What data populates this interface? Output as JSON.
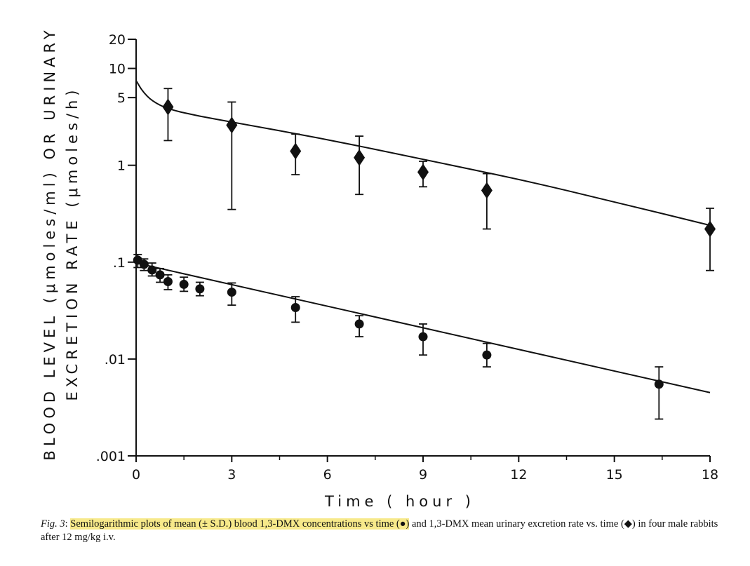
{
  "chart_data": {
    "type": "scatter",
    "x_axis": {
      "label": "Time ( hour )",
      "ticks": [
        0,
        3,
        6,
        9,
        12,
        15,
        18
      ],
      "tick_labels": [
        "0",
        "3",
        "6",
        "9",
        "12",
        "15",
        "18"
      ],
      "range": [
        0,
        18
      ]
    },
    "y_axis": {
      "label_line1": "BLOOD LEVEL (μmoles/ml) OR URINARY",
      "label_line2": "EXCRETION RATE (μmoles/h)",
      "scale": "log",
      "range": [
        0.001,
        20
      ],
      "ticks": [
        0.001,
        0.01,
        0.1,
        1,
        5,
        10,
        20
      ],
      "tick_labels": [
        ".001",
        ".01",
        ".1",
        "1",
        "5",
        "10",
        "20"
      ]
    },
    "series": [
      {
        "marker": "diamond",
        "points": [
          {
            "x": 1,
            "y": 4.0,
            "err_low": 1.8,
            "err_high": 6.2
          },
          {
            "x": 3,
            "y": 2.6,
            "err_low": 0.35,
            "err_high": 4.5
          },
          {
            "x": 5,
            "y": 1.4,
            "err_low": 0.8,
            "err_high": 2.1
          },
          {
            "x": 7,
            "y": 1.2,
            "err_low": 0.5,
            "err_high": 2.0
          },
          {
            "x": 9,
            "y": 0.85,
            "err_low": 0.6,
            "err_high": 1.1
          },
          {
            "x": 11,
            "y": 0.55,
            "err_low": 0.22,
            "err_high": 0.82
          },
          {
            "x": 18,
            "y": 0.22,
            "err_low": 0.082,
            "err_high": 0.36
          }
        ],
        "fit_line": [
          [
            0,
            7.5
          ],
          [
            0.2,
            5.8
          ],
          [
            0.5,
            4.6
          ],
          [
            1,
            3.8
          ],
          [
            2,
            3.2
          ],
          [
            3,
            2.8
          ],
          [
            6,
            1.85
          ],
          [
            9,
            1.15
          ],
          [
            12,
            0.72
          ],
          [
            15,
            0.42
          ],
          [
            18,
            0.24
          ]
        ],
        "color": "#111111"
      },
      {
        "marker": "circle",
        "points": [
          {
            "x": 0.05,
            "y": 0.105,
            "err_low": 0.088,
            "err_high": 0.12
          },
          {
            "x": 0.25,
            "y": 0.095,
            "err_low": 0.082,
            "err_high": 0.108
          },
          {
            "x": 0.5,
            "y": 0.083,
            "err_low": 0.072,
            "err_high": 0.098
          },
          {
            "x": 0.75,
            "y": 0.074,
            "err_low": 0.062,
            "err_high": 0.086
          },
          {
            "x": 1,
            "y": 0.063,
            "err_low": 0.052,
            "err_high": 0.074
          },
          {
            "x": 1.5,
            "y": 0.059,
            "err_low": 0.05,
            "err_high": 0.07
          },
          {
            "x": 2,
            "y": 0.053,
            "err_low": 0.045,
            "err_high": 0.062
          },
          {
            "x": 3,
            "y": 0.049,
            "err_low": 0.036,
            "err_high": 0.061
          },
          {
            "x": 5,
            "y": 0.034,
            "err_low": 0.024,
            "err_high": 0.044
          },
          {
            "x": 7,
            "y": 0.023,
            "err_low": 0.017,
            "err_high": 0.028
          },
          {
            "x": 9,
            "y": 0.017,
            "err_low": 0.011,
            "err_high": 0.023
          },
          {
            "x": 11,
            "y": 0.011,
            "err_low": 0.0083,
            "err_high": 0.0145
          },
          {
            "x": 16.4,
            "y": 0.0055,
            "err_low": 0.0024,
            "err_high": 0.0083
          }
        ],
        "fit_line": [
          [
            0,
            0.098
          ],
          [
            18,
            0.0045
          ]
        ],
        "color": "#111111"
      }
    ]
  },
  "caption": {
    "fig_label": "Fig. 3",
    "colon": ": ",
    "highlighted": "Semilogarithmic plots of mean (± S.D.) blood 1,3-DMX concentrations vs time (●)",
    "rest": " and 1,3-DMX mean urinary excretion rate vs. time (◆) in four male rabbits after 12 mg/kg i.v."
  }
}
